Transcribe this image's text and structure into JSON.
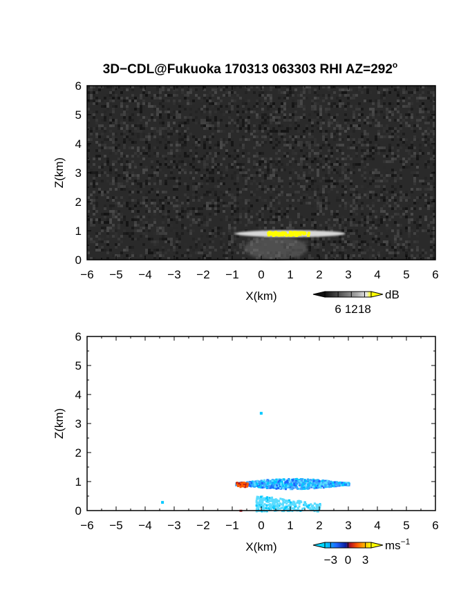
{
  "figure": {
    "title": "3D−CDL@Fukuoka 170313 063303 RHI AZ=292",
    "title_suffix": "o"
  },
  "chart_data": [
    {
      "type": "heatmap",
      "panel": "reflectivity",
      "xlabel": "X(km)",
      "ylabel": "Z(km)",
      "xlim": [
        -6,
        6
      ],
      "ylim": [
        0,
        6
      ],
      "xticks": [
        "−6",
        "−5",
        "−4",
        "−3",
        "−2",
        "−1",
        "0",
        "1",
        "2",
        "3",
        "4",
        "5",
        "6"
      ],
      "yticks": [
        "0",
        "1",
        "2",
        "3",
        "4",
        "5",
        "6"
      ],
      "background": "noise, grayscale (near 0 dB)",
      "colorbar": {
        "unit": "dB",
        "ticks": [
          "6",
          "12",
          "18"
        ],
        "range": [
          0,
          21
        ],
        "colors": [
          "#101010",
          "#5a5a5a",
          "#a8a8a8",
          "#e8e8e8",
          "#ffff00"
        ]
      },
      "features": [
        {
          "name": "cloud layer",
          "x": [
            -0.9,
            2.9
          ],
          "z": [
            0.78,
            1.02
          ],
          "db": 14
        },
        {
          "name": "cloud core",
          "x": [
            0.2,
            1.6
          ],
          "z": [
            0.88,
            1.0
          ],
          "db": 19
        },
        {
          "name": "precipitation below",
          "x": [
            -0.6,
            1.6
          ],
          "z": [
            0.0,
            0.8
          ],
          "db": 8
        }
      ]
    },
    {
      "type": "heatmap",
      "panel": "doppler_velocity",
      "xlabel": "X(km)",
      "ylabel": "Z(km)",
      "xlim": [
        -6,
        6
      ],
      "ylim": [
        0,
        6
      ],
      "xticks": [
        "−6",
        "−5",
        "−4",
        "−3",
        "−2",
        "−1",
        "0",
        "1",
        "2",
        "3",
        "4",
        "5",
        "6"
      ],
      "yticks": [
        "0",
        "1",
        "2",
        "3",
        "4",
        "5",
        "6"
      ],
      "colorbar": {
        "unit": "ms",
        "unit_exp": "−1",
        "ticks": [
          "−3",
          "0",
          "3"
        ],
        "range": [
          -4,
          4
        ],
        "colors": [
          "#00d8ff",
          "#1e64ff",
          "#0a1e9c",
          "#b4141e",
          "#ff5a00",
          "#ffb400",
          "#ffff00"
        ]
      },
      "features": [
        {
          "name": "cloud layer",
          "x": [
            -0.9,
            3.0
          ],
          "z": [
            0.78,
            1.2
          ],
          "velocity": -2.5
        },
        {
          "name": "receding edge",
          "x": [
            -0.9,
            -0.5
          ],
          "z": [
            0.85,
            1.0
          ],
          "velocity": 1.8
        },
        {
          "name": "lower echoes",
          "x": [
            -0.2,
            2.0
          ],
          "z": [
            0.0,
            0.55
          ],
          "velocity": -3
        },
        {
          "name": "isolated pixel",
          "x": [
            -0.05,
            0.0
          ],
          "z": [
            3.33,
            3.4
          ],
          "velocity": -3
        },
        {
          "name": "isolated pixel",
          "x": [
            -3.45,
            -3.4
          ],
          "z": [
            0.28,
            0.33
          ],
          "velocity": -3
        }
      ]
    }
  ]
}
